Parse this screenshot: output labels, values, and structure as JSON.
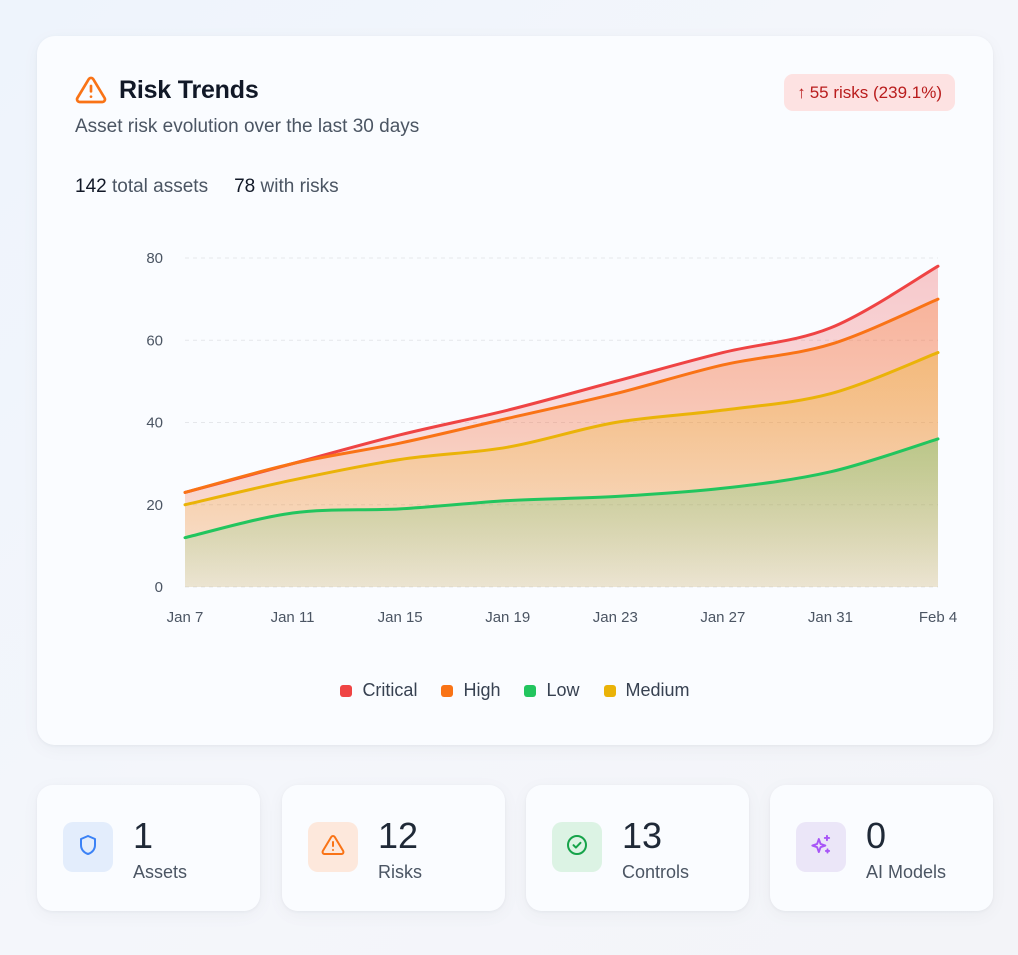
{
  "header": {
    "icon": "warning-triangle-icon",
    "title": "Risk Trends",
    "subtitle": "Asset risk evolution over the last 30 days",
    "total_assets_value": "142",
    "total_assets_label": "total assets",
    "with_risks_value": "78",
    "with_risks_label": "with risks",
    "trend_badge": {
      "arrow": "↑",
      "text": "55 risks (239.1%)",
      "color": "#b91c1c",
      "background": "#fde2e2"
    }
  },
  "chart_data": {
    "type": "area",
    "title": "",
    "xlabel": "",
    "ylabel": "",
    "ylim": [
      0,
      80
    ],
    "yticks": [
      0,
      20,
      40,
      60,
      80
    ],
    "categories": [
      "Jan 7",
      "Jan 11",
      "Jan 15",
      "Jan 19",
      "Jan 23",
      "Jan 27",
      "Jan 31",
      "Feb 4"
    ],
    "grid": true,
    "series": [
      {
        "name": "Low",
        "color": "#22c55e",
        "values": [
          12,
          18,
          19,
          21,
          22,
          24,
          28,
          36
        ]
      },
      {
        "name": "Medium",
        "color": "#eab308",
        "values": [
          20,
          26,
          31,
          34,
          40,
          43,
          47,
          57
        ]
      },
      {
        "name": "High",
        "color": "#f97316",
        "values": [
          23,
          30,
          35,
          41,
          47,
          54,
          59,
          70
        ]
      },
      {
        "name": "Critical",
        "color": "#ef4444",
        "values": [
          23,
          30,
          37,
          43,
          50,
          57,
          63,
          78
        ]
      }
    ],
    "legend": [
      {
        "name": "Critical",
        "color": "#ef4444"
      },
      {
        "name": "High",
        "color": "#f97316"
      },
      {
        "name": "Low",
        "color": "#22c55e"
      },
      {
        "name": "Medium",
        "color": "#eab308"
      }
    ]
  },
  "stat_cards": [
    {
      "value": "1",
      "label": "Assets",
      "icon": "shield-icon",
      "icon_color": "#3b82f6",
      "icon_bg": "#e3edfc"
    },
    {
      "value": "12",
      "label": "Risks",
      "icon": "warning-triangle-icon",
      "icon_color": "#f97316",
      "icon_bg": "#fde8dc"
    },
    {
      "value": "13",
      "label": "Controls",
      "icon": "check-circle-icon",
      "icon_color": "#16a34a",
      "icon_bg": "#dcf3e4"
    },
    {
      "value": "0",
      "label": "AI Models",
      "icon": "sparkles-icon",
      "icon_color": "#a855f7",
      "icon_bg": "#ebe6f8"
    }
  ]
}
